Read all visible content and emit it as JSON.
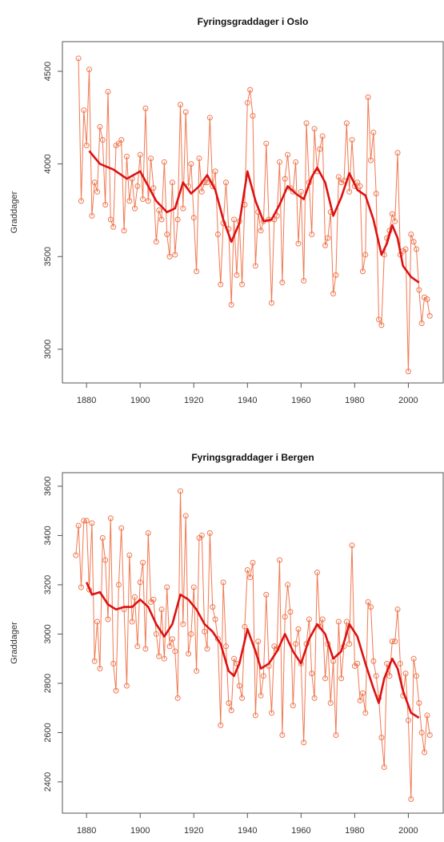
{
  "chart_data": [
    {
      "type": "line",
      "title": "Fyringsgraddager i Oslo",
      "ylabel": "Graddager",
      "xlim": [
        1871,
        2013
      ],
      "ylim": [
        2818,
        4660
      ],
      "xticks": [
        1880,
        1900,
        1920,
        1940,
        1960,
        1980,
        2000
      ],
      "yticks": [
        3000,
        3500,
        4000,
        4500
      ],
      "series": [
        {
          "color": "#f07850",
          "marker": "circle",
          "x": [
            1877,
            1878,
            1879,
            1880,
            1881,
            1882,
            1883,
            1884,
            1885,
            1886,
            1887,
            1888,
            1889,
            1890,
            1891,
            1892,
            1893,
            1894,
            1895,
            1896,
            1897,
            1898,
            1899,
            1900,
            1901,
            1902,
            1903,
            1904,
            1905,
            1906,
            1907,
            1908,
            1909,
            1910,
            1911,
            1912,
            1913,
            1914,
            1915,
            1916,
            1917,
            1918,
            1919,
            1920,
            1921,
            1922,
            1923,
            1924,
            1925,
            1926,
            1927,
            1928,
            1929,
            1930,
            1931,
            1932,
            1933,
            1934,
            1935,
            1936,
            1937,
            1938,
            1939,
            1940,
            1941,
            1942,
            1943,
            1944,
            1945,
            1946,
            1947,
            1948,
            1949,
            1950,
            1951,
            1952,
            1953,
            1954,
            1955,
            1956,
            1957,
            1958,
            1959,
            1960,
            1961,
            1962,
            1963,
            1964,
            1965,
            1966,
            1967,
            1968,
            1969,
            1970,
            1971,
            1972,
            1973,
            1974,
            1975,
            1976,
            1977,
            1978,
            1979,
            1980,
            1981,
            1982,
            1983,
            1984,
            1985,
            1986,
            1987,
            1988,
            1989,
            1990,
            1991,
            1992,
            1993,
            1994,
            1995,
            1996,
            1997,
            1998,
            1999,
            2000,
            2001,
            2002,
            2003,
            2004,
            2005,
            2006,
            2007,
            2008
          ],
          "values": [
            4570,
            3800,
            4290,
            4100,
            4510,
            3720,
            3900,
            3850,
            4200,
            4130,
            3780,
            4390,
            3700,
            3660,
            4100,
            4110,
            4130,
            3640,
            4040,
            3800,
            3920,
            3760,
            3880,
            4050,
            3810,
            4300,
            3800,
            4030,
            3870,
            3580,
            3750,
            3700,
            4010,
            3620,
            3500,
            3900,
            3510,
            3700,
            4320,
            3760,
            4280,
            3880,
            4000,
            3710,
            3420,
            4030,
            3850,
            3900,
            3900,
            4250,
            3880,
            3960,
            3620,
            3350,
            3680,
            3900,
            3650,
            3240,
            3700,
            3400,
            3690,
            3350,
            3780,
            4330,
            4400,
            4260,
            3450,
            3740,
            3640,
            3690,
            4110,
            3700,
            3250,
            3700,
            3720,
            4010,
            3360,
            3920,
            4050,
            3870,
            3850,
            4010,
            3570,
            3850,
            3370,
            4220,
            3900,
            3620,
            4190,
            3960,
            4080,
            4150,
            3560,
            3600,
            3740,
            3300,
            3400,
            3930,
            3900,
            3910,
            4220,
            3850,
            4130,
            3880,
            3900,
            3880,
            3420,
            3510,
            4360,
            4020,
            4170,
            3840,
            3160,
            3130,
            3510,
            3600,
            3640,
            3730,
            3690,
            4060,
            3510,
            3530,
            3540,
            2880,
            3620,
            3580,
            3540,
            3320,
            3140,
            3280,
            3270,
            3180
          ]
        },
        {
          "color": "#dd1111",
          "x": [
            1881,
            1885,
            1890,
            1895,
            1900,
            1903,
            1906,
            1910,
            1913,
            1916,
            1919,
            1922,
            1925,
            1928,
            1931,
            1934,
            1937,
            1940,
            1943,
            1946,
            1949,
            1952,
            1955,
            1958,
            1961,
            1964,
            1966,
            1969,
            1972,
            1975,
            1978,
            1981,
            1984,
            1987,
            1990,
            1992,
            1994,
            1996,
            1998,
            2001,
            2004
          ],
          "values": [
            4070,
            4000,
            3970,
            3920,
            3960,
            3880,
            3800,
            3740,
            3760,
            3900,
            3840,
            3880,
            3940,
            3860,
            3700,
            3580,
            3680,
            3960,
            3800,
            3690,
            3700,
            3780,
            3880,
            3840,
            3810,
            3930,
            3980,
            3900,
            3720,
            3820,
            3950,
            3860,
            3830,
            3700,
            3510,
            3570,
            3670,
            3600,
            3450,
            3390,
            3360
          ]
        }
      ]
    },
    {
      "type": "line",
      "title": "Fyringsgraddager i Bergen",
      "ylabel": "Graddager",
      "xlim": [
        1871,
        2013
      ],
      "ylim": [
        2273,
        3655
      ],
      "xticks": [
        1880,
        1900,
        1920,
        1940,
        1960,
        1980,
        2000
      ],
      "yticks": [
        2400,
        2600,
        2800,
        3000,
        3200,
        3400,
        3600
      ],
      "series": [
        {
          "color": "#f07850",
          "marker": "circle",
          "x": [
            1876,
            1877,
            1878,
            1879,
            1880,
            1881,
            1882,
            1883,
            1884,
            1885,
            1886,
            1887,
            1888,
            1889,
            1890,
            1891,
            1892,
            1893,
            1894,
            1895,
            1896,
            1897,
            1898,
            1899,
            1900,
            1901,
            1902,
            1903,
            1904,
            1905,
            1906,
            1907,
            1908,
            1909,
            1910,
            1911,
            1912,
            1913,
            1914,
            1915,
            1916,
            1917,
            1918,
            1919,
            1920,
            1921,
            1922,
            1923,
            1924,
            1925,
            1926,
            1927,
            1928,
            1929,
            1930,
            1931,
            1932,
            1933,
            1934,
            1935,
            1936,
            1937,
            1938,
            1939,
            1940,
            1941,
            1942,
            1943,
            1944,
            1945,
            1946,
            1947,
            1948,
            1949,
            1950,
            1951,
            1952,
            1953,
            1954,
            1955,
            1956,
            1957,
            1958,
            1959,
            1960,
            1961,
            1962,
            1963,
            1964,
            1965,
            1966,
            1967,
            1968,
            1969,
            1970,
            1971,
            1972,
            1973,
            1974,
            1975,
            1976,
            1977,
            1978,
            1979,
            1980,
            1981,
            1982,
            1983,
            1984,
            1985,
            1986,
            1987,
            1988,
            1989,
            1990,
            1991,
            1992,
            1993,
            1994,
            1995,
            1996,
            1997,
            1998,
            1999,
            2000,
            2001,
            2002,
            2003,
            2004,
            2005,
            2006,
            2007,
            2008
          ],
          "values": [
            3320,
            3440,
            3190,
            3460,
            3460,
            3180,
            3450,
            2890,
            3050,
            2860,
            3390,
            3300,
            3060,
            3470,
            2880,
            2770,
            3200,
            3430,
            3100,
            2790,
            3320,
            3050,
            3150,
            2950,
            3210,
            3290,
            2940,
            3410,
            3130,
            3140,
            3000,
            2910,
            3100,
            2900,
            3190,
            2950,
            2980,
            2930,
            2740,
            3580,
            3040,
            3480,
            2920,
            3000,
            3190,
            2850,
            3390,
            3400,
            3010,
            2940,
            3410,
            3110,
            3060,
            2980,
            2630,
            3210,
            2950,
            2720,
            2690,
            2900,
            2880,
            2790,
            2740,
            3030,
            3260,
            3230,
            3290,
            2670,
            2970,
            2750,
            2830,
            3160,
            2870,
            2680,
            2950,
            2940,
            3300,
            2590,
            3070,
            3200,
            3090,
            2710,
            2960,
            3020,
            2880,
            2560,
            2960,
            3060,
            2840,
            2740,
            3250,
            3030,
            3060,
            2820,
            2960,
            2720,
            2890,
            2590,
            3050,
            2820,
            2950,
            3050,
            2960,
            3360,
            2870,
            2880,
            2730,
            2760,
            2680,
            3130,
            3110,
            2890,
            2830,
            2740,
            2580,
            2460,
            2880,
            2830,
            2970,
            2970,
            3100,
            2880,
            2750,
            2840,
            2650,
            2330,
            2900,
            2830,
            2720,
            2600,
            2520,
            2670,
            2590
          ]
        },
        {
          "color": "#dd1111",
          "x": [
            1880,
            1882,
            1885,
            1888,
            1891,
            1894,
            1897,
            1900,
            1903,
            1906,
            1909,
            1912,
            1915,
            1918,
            1921,
            1924,
            1927,
            1930,
            1933,
            1935,
            1937,
            1940,
            1943,
            1945,
            1948,
            1951,
            1954,
            1957,
            1960,
            1963,
            1966,
            1969,
            1972,
            1975,
            1978,
            1981,
            1984,
            1987,
            1989,
            1991,
            1994,
            1996,
            1998,
            2001,
            2004
          ],
          "values": [
            3210,
            3160,
            3170,
            3120,
            3100,
            3110,
            3110,
            3140,
            3110,
            3040,
            2990,
            3040,
            3160,
            3140,
            3100,
            3040,
            3010,
            2960,
            2850,
            2830,
            2880,
            3020,
            2930,
            2860,
            2880,
            2930,
            3000,
            2930,
            2880,
            2980,
            3040,
            3000,
            2900,
            2930,
            3040,
            2990,
            2880,
            2780,
            2720,
            2820,
            2900,
            2860,
            2770,
            2680,
            2660
          ]
        }
      ]
    }
  ]
}
